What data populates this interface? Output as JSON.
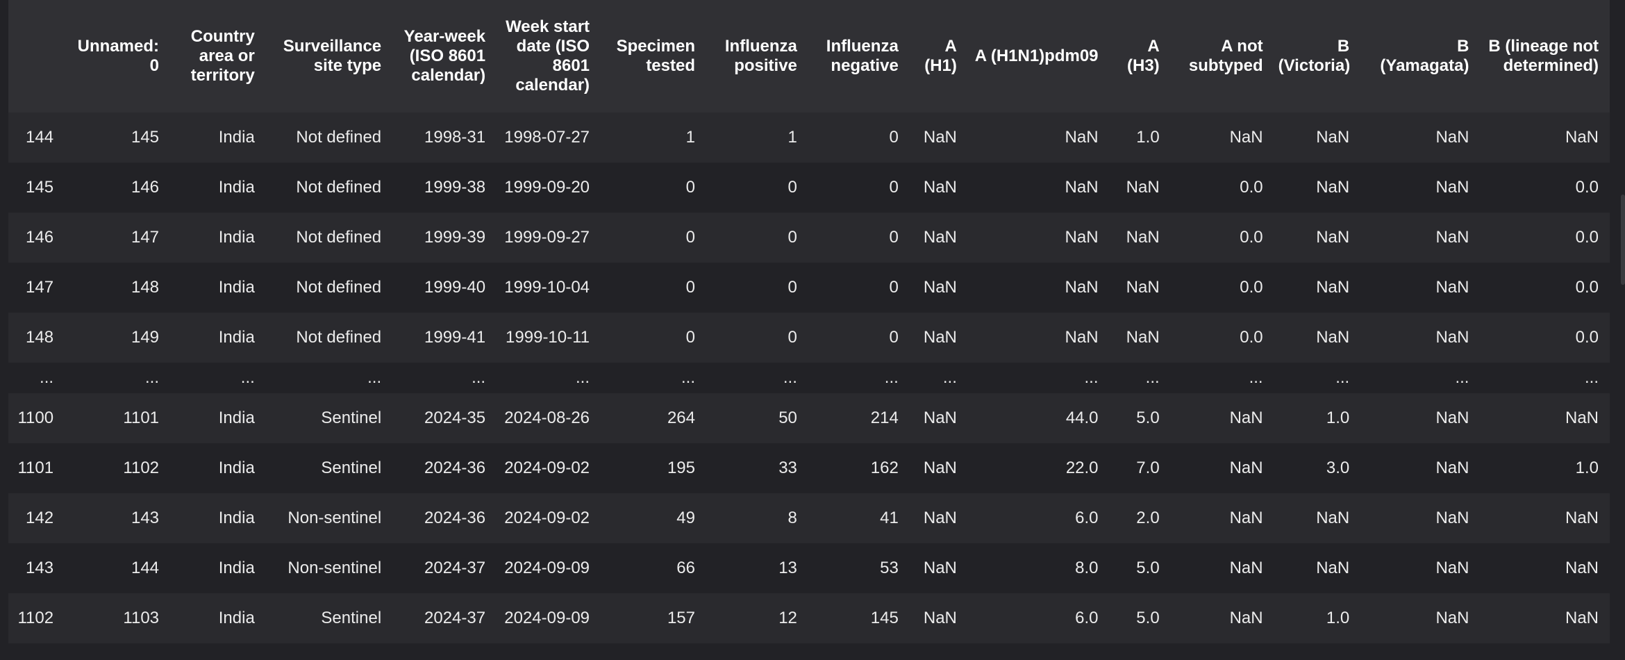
{
  "table": {
    "columns": [
      "",
      "Unnamed: 0",
      "Country area or territory",
      "Surveillance site type",
      "Year-week (ISO 8601 calendar)",
      "Week start date (ISO 8601 calendar)",
      "Specimen tested",
      "Influenza positive",
      "Influenza negative",
      "A (H1)",
      "A (H1N1)pdm09",
      "A (H3)",
      "A not subtyped",
      "B (Victoria)",
      "B (Yamagata)",
      "B (lineage not determined)"
    ],
    "rows": [
      [
        "144",
        "145",
        "India",
        "Not defined",
        "1998-31",
        "1998-07-27",
        "1",
        "1",
        "0",
        "NaN",
        "NaN",
        "1.0",
        "NaN",
        "NaN",
        "NaN",
        "NaN"
      ],
      [
        "145",
        "146",
        "India",
        "Not defined",
        "1999-38",
        "1999-09-20",
        "0",
        "0",
        "0",
        "NaN",
        "NaN",
        "NaN",
        "0.0",
        "NaN",
        "NaN",
        "0.0"
      ],
      [
        "146",
        "147",
        "India",
        "Not defined",
        "1999-39",
        "1999-09-27",
        "0",
        "0",
        "0",
        "NaN",
        "NaN",
        "NaN",
        "0.0",
        "NaN",
        "NaN",
        "0.0"
      ],
      [
        "147",
        "148",
        "India",
        "Not defined",
        "1999-40",
        "1999-10-04",
        "0",
        "0",
        "0",
        "NaN",
        "NaN",
        "NaN",
        "0.0",
        "NaN",
        "NaN",
        "0.0"
      ],
      [
        "148",
        "149",
        "India",
        "Not defined",
        "1999-41",
        "1999-10-11",
        "0",
        "0",
        "0",
        "NaN",
        "NaN",
        "NaN",
        "0.0",
        "NaN",
        "NaN",
        "0.0"
      ],
      [
        "...",
        "...",
        "...",
        "...",
        "...",
        "...",
        "...",
        "...",
        "...",
        "...",
        "...",
        "...",
        "...",
        "...",
        "...",
        "..."
      ],
      [
        "1100",
        "1101",
        "India",
        "Sentinel",
        "2024-35",
        "2024-08-26",
        "264",
        "50",
        "214",
        "NaN",
        "44.0",
        "5.0",
        "NaN",
        "1.0",
        "NaN",
        "NaN"
      ],
      [
        "1101",
        "1102",
        "India",
        "Sentinel",
        "2024-36",
        "2024-09-02",
        "195",
        "33",
        "162",
        "NaN",
        "22.0",
        "7.0",
        "NaN",
        "3.0",
        "NaN",
        "1.0"
      ],
      [
        "142",
        "143",
        "India",
        "Non-sentinel",
        "2024-36",
        "2024-09-02",
        "49",
        "8",
        "41",
        "NaN",
        "6.0",
        "2.0",
        "NaN",
        "NaN",
        "NaN",
        "NaN"
      ],
      [
        "143",
        "144",
        "India",
        "Non-sentinel",
        "2024-37",
        "2024-09-09",
        "66",
        "13",
        "53",
        "NaN",
        "8.0",
        "5.0",
        "NaN",
        "NaN",
        "NaN",
        "NaN"
      ],
      [
        "1102",
        "1103",
        "India",
        "Sentinel",
        "2024-37",
        "2024-09-09",
        "157",
        "12",
        "145",
        "NaN",
        "6.0",
        "5.0",
        "NaN",
        "1.0",
        "NaN",
        "NaN"
      ]
    ]
  }
}
